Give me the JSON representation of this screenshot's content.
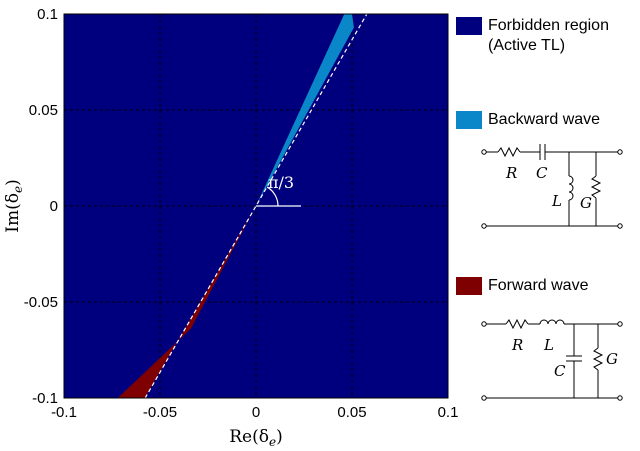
{
  "chart_data": {
    "type": "area",
    "xlim": [
      -0.1,
      0.1
    ],
    "ylim": [
      -0.1,
      0.1
    ],
    "xticks": [
      "-0.1",
      "-0.05",
      "0",
      "0.05",
      "0.1"
    ],
    "yticks": [
      "0.1",
      "0.05",
      "0",
      "-0.05",
      "-0.1"
    ],
    "xlabel": "Re(δ_e)",
    "ylabel": "Im(δ_e)",
    "grid": true,
    "annotation": "π/3",
    "reference_line_angle": "π/3",
    "regions": [
      {
        "name": "Forbidden region (Active TL)",
        "color": "#00007f",
        "extent": "entire plane"
      },
      {
        "name": "Backward wave",
        "color": "#0a87c8",
        "polygon": [
          [
            0.046,
            0.1
          ],
          [
            0.05,
            0.1
          ],
          [
            0.051,
            0.093
          ],
          [
            0.0,
            0.0
          ]
        ]
      },
      {
        "name": "Forward wave",
        "color": "#7f0000",
        "polygon": [
          [
            -0.072,
            -0.1
          ],
          [
            -0.058,
            -0.1
          ],
          [
            0.0,
            0.0
          ],
          [
            -0.034,
            -0.064
          ]
        ]
      }
    ],
    "colors": {
      "forbidden": "#00007f",
      "backward": "#0a87c8",
      "forward": "#7f0000"
    }
  },
  "legend": {
    "forbidden_line1": "Forbidden region",
    "forbidden_line2": "(Active TL)",
    "backward": "Backward wave",
    "forward": "Forward wave"
  },
  "circuit_backward": {
    "R": "R",
    "C": "C",
    "L": "L",
    "G": "G"
  },
  "circuit_forward": {
    "R": "R",
    "L": "L",
    "C": "C",
    "G": "G"
  }
}
